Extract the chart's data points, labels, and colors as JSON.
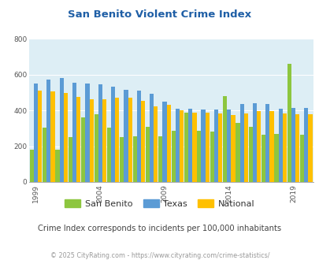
{
  "title": "San Benito Violent Crime Index",
  "subtitle": "Crime Index corresponds to incidents per 100,000 inhabitants",
  "footer": "© 2025 CityRating.com - https://www.cityrating.com/crime-statistics/",
  "years": [
    1999,
    2000,
    2001,
    2002,
    2003,
    2004,
    2005,
    2006,
    2007,
    2008,
    2009,
    2010,
    2011,
    2012,
    2013,
    2014,
    2015,
    2016,
    2017,
    2018,
    2019,
    2020
  ],
  "san_benito": [
    180,
    305,
    180,
    250,
    360,
    380,
    305,
    250,
    255,
    310,
    255,
    285,
    390,
    285,
    280,
    480,
    330,
    310,
    265,
    270,
    660,
    265
  ],
  "texas": [
    550,
    575,
    580,
    555,
    550,
    545,
    535,
    515,
    510,
    495,
    450,
    410,
    410,
    405,
    405,
    405,
    435,
    440,
    435,
    410,
    415,
    415
  ],
  "national": [
    510,
    505,
    500,
    475,
    465,
    465,
    470,
    470,
    455,
    425,
    430,
    400,
    390,
    390,
    385,
    375,
    385,
    395,
    395,
    385,
    380,
    380
  ],
  "san_benito_color": "#8dc63f",
  "texas_color": "#5b9bd5",
  "national_color": "#ffc000",
  "plot_bg_color": "#ddeef5",
  "ylim": [
    0,
    800
  ],
  "yticks": [
    0,
    200,
    400,
    600,
    800
  ],
  "xtick_positions": [
    1999,
    2004,
    2009,
    2014,
    2019
  ],
  "title_color": "#1f5fa6",
  "subtitle_color": "#444444",
  "footer_color": "#999999",
  "legend_labels": [
    "San Benito",
    "Texas",
    "National"
  ]
}
